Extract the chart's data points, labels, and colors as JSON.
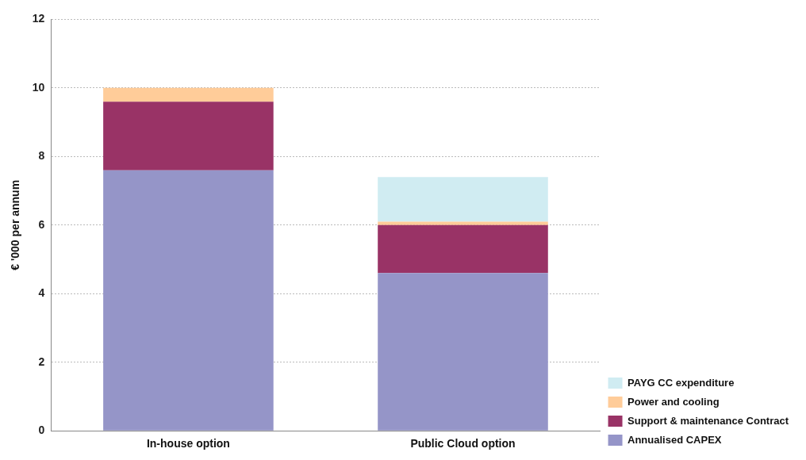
{
  "chart_data": {
    "type": "bar",
    "stacked": true,
    "ylabel": "€ '000 per annum",
    "categories": [
      "In-house option",
      "Public Cloud option"
    ],
    "series": [
      {
        "name": "Annualised CAPEX",
        "color": "#9595c8",
        "values": [
          7.6,
          4.6
        ]
      },
      {
        "name": "Support & maintenance Contract",
        "color": "#993366",
        "values": [
          2.0,
          1.4
        ]
      },
      {
        "name": "Power and cooling",
        "color": "#ffcc99",
        "values": [
          0.4,
          0.1
        ]
      },
      {
        "name": "PAYG CC expenditure",
        "color": "#d0ecf2",
        "values": [
          null,
          1.3
        ]
      }
    ],
    "ylim": [
      0,
      12
    ],
    "yticks": [
      0,
      2,
      4,
      6,
      8,
      10,
      12
    ],
    "grid": "y",
    "legend": "bottom right"
  }
}
